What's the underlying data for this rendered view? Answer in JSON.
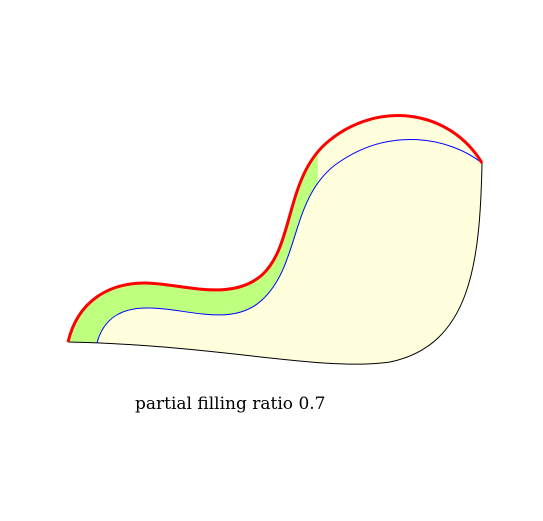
{
  "caption": "partial filling ratio 0.7",
  "filling_ratio": 0.7,
  "colors": {
    "background": "#ffffff",
    "region_fill": "#ffffdd",
    "filled_band": "#bfff80",
    "outer_curve": "#ff0000",
    "inner_curve": "#0000ff",
    "bottom_curve": "#000000"
  }
}
